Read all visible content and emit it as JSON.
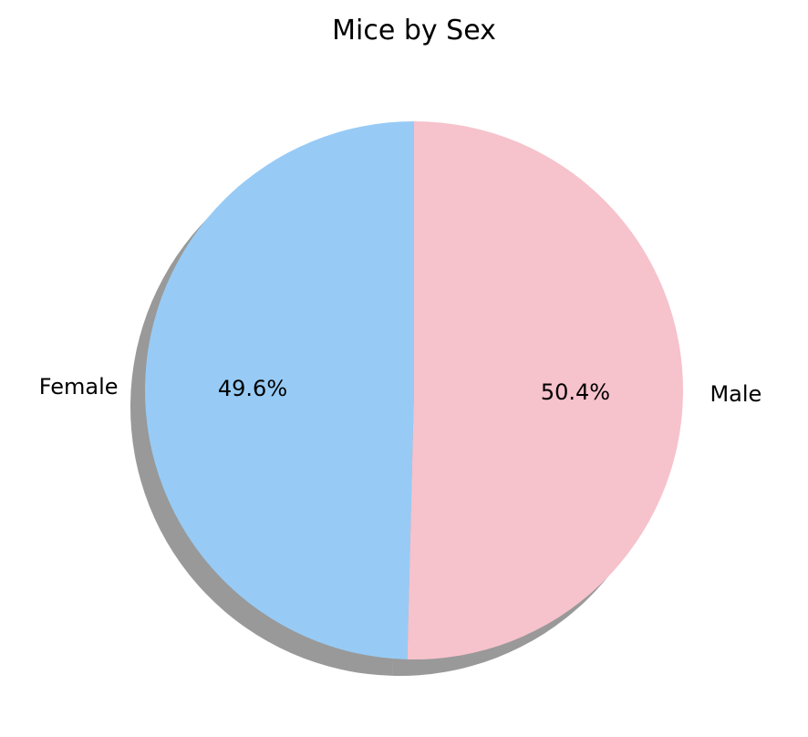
{
  "chart_data": {
    "type": "pie",
    "title": "Mice by Sex",
    "categories": [
      "Female",
      "Male"
    ],
    "values": [
      49.6,
      50.4
    ],
    "percent_labels": [
      "49.6%",
      "50.4%"
    ],
    "colors": [
      "#97cbf5",
      "#f6c2cc"
    ],
    "shadow": true,
    "start_angle_deg": 90,
    "direction": "counterclockwise"
  }
}
